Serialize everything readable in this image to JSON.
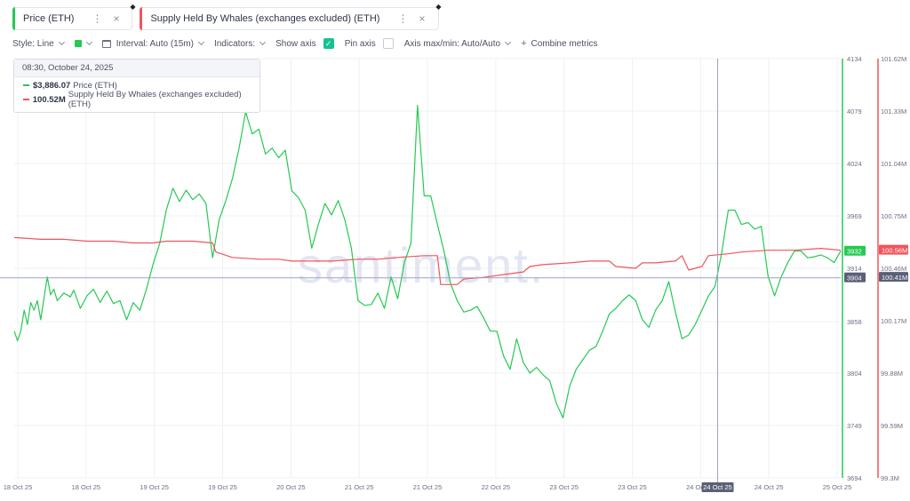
{
  "tabs": [
    {
      "label": "Price (ETH)",
      "color": "#26c953",
      "more_icon": "more-vertical-icon",
      "close_icon": "close-icon"
    },
    {
      "label": "Supply Held By Whales (exchanges excluded) (ETH)",
      "color": "#f0555b",
      "more_icon": "more-vertical-icon",
      "close_icon": "close-icon"
    }
  ],
  "toolbar": {
    "style_label": "Style: Line",
    "color_value": "#26c953",
    "interval_label": "Interval: Auto (15m)",
    "indicators_label": "Indicators:",
    "show_axis_label": "Show axis",
    "show_axis_checked": true,
    "pin_axis_label": "Pin axis",
    "pin_axis_checked": false,
    "axis_minmax_label": "Axis max/min: Auto/Auto",
    "combine_label": "Combine metrics"
  },
  "tooltip": {
    "timestamp": "08:30, October 24, 2025",
    "rows": [
      {
        "value": "$3,886.07",
        "name": "Price (ETH)",
        "color": "#26c953"
      },
      {
        "value": "100.52M",
        "name": "Supply Held By Whales (exchanges excluded) (ETH)",
        "color": "#f0555b"
      }
    ]
  },
  "watermark": "santiment.",
  "chart_data": {
    "type": "line",
    "x_labels": [
      "18 Oct 25",
      "18 Oct 25",
      "19 Oct 25",
      "19 Oct 25",
      "20 Oct 25",
      "21 Oct 25",
      "21 Oct 25",
      "22 Oct 25",
      "23 Oct 25",
      "23 Oct 25",
      "24 Oct 25",
      "24 Oct 25",
      "25 Oct 25"
    ],
    "hover_x_label": "24 Oct 25",
    "hover_x_index": 10.25,
    "price_axis": {
      "ticks": [
        4134,
        4079,
        4024,
        3969,
        3914,
        3858,
        3804,
        3749,
        3694
      ],
      "ylim": [
        3694,
        4134
      ],
      "current_badge": "3932",
      "hover_badge": "3904",
      "color": "#26c953"
    },
    "whales_axis": {
      "ticks": [
        "101.62M",
        "101.33M",
        "101.04M",
        "100.75M",
        "100.46M",
        "100.17M",
        "99.88M",
        "99.59M",
        "99.3M"
      ],
      "ylim": [
        99.3,
        101.62
      ],
      "current_badge": "100.56M",
      "hover_badge": "100.41M",
      "color": "#f0555b"
    },
    "series": [
      {
        "name": "Price (ETH)",
        "color": "#26c953",
        "points": [
          [
            0,
            3848
          ],
          [
            0.1,
            3838
          ],
          [
            0.2,
            3848
          ],
          [
            0.3,
            3870
          ],
          [
            0.4,
            3855
          ],
          [
            0.5,
            3878
          ],
          [
            0.6,
            3870
          ],
          [
            0.7,
            3880
          ],
          [
            0.8,
            3860
          ],
          [
            1.0,
            3905
          ],
          [
            1.1,
            3886
          ],
          [
            1.2,
            3892
          ],
          [
            1.3,
            3880
          ],
          [
            1.5,
            3888
          ],
          [
            1.7,
            3884
          ],
          [
            1.8,
            3891
          ],
          [
            2.0,
            3872
          ],
          [
            2.2,
            3885
          ],
          [
            2.4,
            3892
          ],
          [
            2.6,
            3878
          ],
          [
            2.8,
            3890
          ],
          [
            3.0,
            3877
          ],
          [
            3.2,
            3880
          ],
          [
            3.4,
            3860
          ],
          [
            3.6,
            3878
          ],
          [
            3.8,
            3870
          ],
          [
            4.0,
            3892
          ],
          [
            4.2,
            3918
          ],
          [
            4.4,
            3940
          ],
          [
            4.6,
            3975
          ],
          [
            4.8,
            3998
          ],
          [
            5.0,
            3984
          ],
          [
            5.2,
            3996
          ],
          [
            5.4,
            3986
          ],
          [
            5.6,
            3992
          ],
          [
            5.8,
            3982
          ],
          [
            6.0,
            3925
          ],
          [
            6.2,
            3965
          ],
          [
            6.4,
            3985
          ],
          [
            6.6,
            4008
          ],
          [
            6.8,
            4040
          ],
          [
            7.0,
            4078
          ],
          [
            7.2,
            4055
          ],
          [
            7.4,
            4060
          ],
          [
            7.6,
            4034
          ],
          [
            7.8,
            4040
          ],
          [
            8.0,
            4030
          ],
          [
            8.2,
            4038
          ],
          [
            8.4,
            3995
          ],
          [
            8.6,
            3988
          ],
          [
            8.8,
            3975
          ],
          [
            9.0,
            3935
          ],
          [
            9.2,
            3960
          ],
          [
            9.4,
            3982
          ],
          [
            9.6,
            3970
          ],
          [
            9.8,
            3985
          ],
          [
            10.0,
            3965
          ],
          [
            10.2,
            3935
          ],
          [
            10.4,
            3880
          ],
          [
            10.6,
            3875
          ],
          [
            10.8,
            3876
          ],
          [
            11.0,
            3888
          ],
          [
            11.2,
            3872
          ],
          [
            11.4,
            3905
          ],
          [
            11.6,
            3882
          ],
          [
            11.8,
            3920
          ],
          [
            12.0,
            3940
          ],
          [
            12.2,
            4085
          ],
          [
            12.4,
            3990
          ],
          [
            12.6,
            3990
          ],
          [
            12.8,
            3960
          ],
          [
            13.0,
            3932
          ],
          [
            13.2,
            3898
          ],
          [
            13.4,
            3880
          ],
          [
            13.6,
            3868
          ],
          [
            13.8,
            3870
          ],
          [
            14.0,
            3874
          ],
          [
            14.2,
            3862
          ],
          [
            14.4,
            3848
          ],
          [
            14.6,
            3848
          ],
          [
            14.8,
            3822
          ],
          [
            15.0,
            3808
          ],
          [
            15.2,
            3840
          ],
          [
            15.4,
            3815
          ],
          [
            15.6,
            3804
          ],
          [
            15.8,
            3810
          ],
          [
            16.0,
            3802
          ],
          [
            16.2,
            3796
          ],
          [
            16.4,
            3772
          ],
          [
            16.6,
            3757
          ],
          [
            16.8,
            3790
          ],
          [
            17.0,
            3808
          ],
          [
            17.2,
            3818
          ],
          [
            17.4,
            3828
          ],
          [
            17.6,
            3832
          ],
          [
            17.8,
            3848
          ],
          [
            18.0,
            3866
          ],
          [
            18.2,
            3872
          ],
          [
            18.4,
            3880
          ],
          [
            18.6,
            3886
          ],
          [
            18.8,
            3880
          ],
          [
            19.0,
            3860
          ],
          [
            19.2,
            3852
          ],
          [
            19.4,
            3870
          ],
          [
            19.6,
            3880
          ],
          [
            19.8,
            3900
          ],
          [
            20.0,
            3868
          ],
          [
            20.2,
            3840
          ],
          [
            20.4,
            3844
          ],
          [
            20.6,
            3855
          ],
          [
            20.8,
            3870
          ],
          [
            21.0,
            3885
          ],
          [
            21.2,
            3895
          ],
          [
            21.4,
            3930
          ],
          [
            21.6,
            3975
          ],
          [
            21.8,
            3975
          ],
          [
            22.0,
            3960
          ],
          [
            22.2,
            3962
          ],
          [
            22.4,
            3955
          ],
          [
            22.6,
            3958
          ],
          [
            22.8,
            3906
          ],
          [
            23.0,
            3885
          ],
          [
            23.2,
            3905
          ],
          [
            23.4,
            3920
          ],
          [
            23.6,
            3932
          ],
          [
            23.8,
            3932
          ],
          [
            24.0,
            3925
          ],
          [
            24.2,
            3926
          ],
          [
            24.4,
            3928
          ],
          [
            24.6,
            3925
          ],
          [
            24.8,
            3920
          ],
          [
            25.0,
            3932
          ]
        ]
      },
      {
        "name": "Supply Held By Whales (exchanges excluded) (ETH)",
        "color": "#f0555b",
        "points": [
          [
            0,
            100.63
          ],
          [
            0.8,
            100.62
          ],
          [
            1.5,
            100.62
          ],
          [
            2.2,
            100.61
          ],
          [
            3.0,
            100.61
          ],
          [
            3.6,
            100.6
          ],
          [
            4.2,
            100.6
          ],
          [
            4.6,
            100.61
          ],
          [
            5.4,
            100.61
          ],
          [
            6.0,
            100.6
          ],
          [
            6.1,
            100.55
          ],
          [
            6.6,
            100.52
          ],
          [
            7.4,
            100.51
          ],
          [
            8.0,
            100.51
          ],
          [
            8.4,
            100.5
          ],
          [
            9.0,
            100.5
          ],
          [
            9.6,
            100.5
          ],
          [
            10.4,
            100.51
          ],
          [
            11.0,
            100.51
          ],
          [
            11.6,
            100.52
          ],
          [
            12.4,
            100.53
          ],
          [
            12.8,
            100.53
          ],
          [
            12.9,
            100.37
          ],
          [
            13.4,
            100.37
          ],
          [
            13.6,
            100.4
          ],
          [
            14.2,
            100.41
          ],
          [
            15.0,
            100.43
          ],
          [
            15.4,
            100.44
          ],
          [
            15.6,
            100.47
          ],
          [
            16.0,
            100.48
          ],
          [
            16.8,
            100.49
          ],
          [
            17.4,
            100.5
          ],
          [
            18.0,
            100.5
          ],
          [
            18.2,
            100.47
          ],
          [
            18.8,
            100.46
          ],
          [
            19.0,
            100.49
          ],
          [
            19.4,
            100.49
          ],
          [
            20.0,
            100.5
          ],
          [
            20.2,
            100.53
          ],
          [
            20.4,
            100.45
          ],
          [
            20.8,
            100.47
          ],
          [
            21.0,
            100.53
          ],
          [
            21.6,
            100.54
          ],
          [
            22.0,
            100.55
          ],
          [
            22.8,
            100.56
          ],
          [
            23.6,
            100.56
          ],
          [
            24.4,
            100.57
          ],
          [
            25.0,
            100.56
          ]
        ]
      }
    ]
  }
}
